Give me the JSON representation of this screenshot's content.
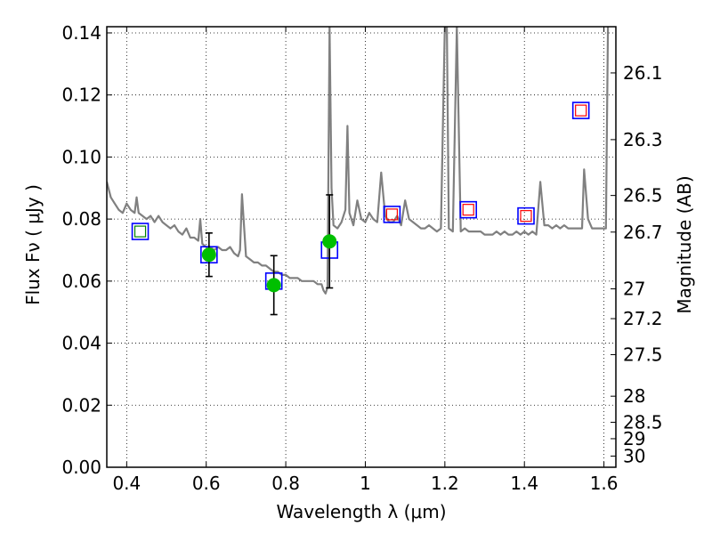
{
  "chart_data": {
    "type": "scatter",
    "xlabel": "Wavelength  λ (μm)",
    "ylabel": "Flux  Fν  ( μJy )",
    "y2label": "Magnitude (AB)",
    "xlim": [
      0.35,
      1.63
    ],
    "ylim": [
      0.0,
      0.142
    ],
    "x_ticks": [
      0.4,
      0.6,
      0.8,
      1.0,
      1.2,
      1.4,
      1.6
    ],
    "x_tick_labels": [
      "0.4",
      "0.6",
      "0.8",
      "1",
      "1.2",
      "1.4",
      "1.6"
    ],
    "y_ticks": [
      0.0,
      0.02,
      0.04,
      0.06,
      0.08,
      0.1,
      0.12,
      0.14
    ],
    "y_tick_labels": [
      "0.00",
      "0.02",
      "0.04",
      "0.06",
      "0.08",
      "0.10",
      "0.12",
      "0.14"
    ],
    "mag_ticks": [
      {
        "flux": 0.1271,
        "label": "26.1"
      },
      {
        "flux": 0.1056,
        "label": "26.3"
      },
      {
        "flux": 0.0876,
        "label": "26.5"
      },
      {
        "flux": 0.0758,
        "label": "26.7"
      },
      {
        "flux": 0.0575,
        "label": "27"
      },
      {
        "flux": 0.0479,
        "label": "27.2"
      },
      {
        "flux": 0.0363,
        "label": "27.5"
      },
      {
        "flux": 0.0229,
        "label": "28"
      },
      {
        "flux": 0.0145,
        "label": "28.5"
      },
      {
        "flux": 0.0092,
        "label": "29"
      },
      {
        "flux": 0.0036,
        "label": "30"
      }
    ],
    "grid": true,
    "colors": {
      "spectrum": "#808080",
      "model_box": "#0000ff",
      "inner_green": "#008000",
      "inner_red": "#ff0000",
      "observed": "#00bf00",
      "errorbar": "#000000"
    },
    "series": [
      {
        "marker": "spectrum",
        "x": [
          0.35,
          0.36,
          0.37,
          0.38,
          0.39,
          0.4,
          0.41,
          0.42,
          0.425,
          0.43,
          0.44,
          0.45,
          0.46,
          0.47,
          0.48,
          0.49,
          0.5,
          0.51,
          0.52,
          0.53,
          0.54,
          0.55,
          0.56,
          0.57,
          0.58,
          0.585,
          0.59,
          0.6,
          0.61,
          0.62,
          0.63,
          0.64,
          0.65,
          0.66,
          0.67,
          0.68,
          0.685,
          0.69,
          0.7,
          0.71,
          0.72,
          0.73,
          0.74,
          0.75,
          0.76,
          0.77,
          0.78,
          0.79,
          0.8,
          0.81,
          0.82,
          0.83,
          0.84,
          0.85,
          0.86,
          0.87,
          0.88,
          0.885,
          0.89,
          0.895,
          0.9,
          0.905,
          0.91,
          0.915,
          0.92,
          0.93,
          0.94,
          0.95,
          0.955,
          0.96,
          0.97,
          0.98,
          0.99,
          1.0,
          1.01,
          1.02,
          1.03,
          1.04,
          1.05,
          1.06,
          1.07,
          1.08,
          1.09,
          1.1,
          1.11,
          1.12,
          1.13,
          1.14,
          1.15,
          1.16,
          1.17,
          1.18,
          1.19,
          1.2,
          1.205,
          1.21,
          1.22,
          1.23,
          1.24,
          1.25,
          1.26,
          1.27,
          1.28,
          1.29,
          1.3,
          1.31,
          1.32,
          1.33,
          1.34,
          1.35,
          1.36,
          1.37,
          1.38,
          1.39,
          1.4,
          1.41,
          1.42,
          1.43,
          1.44,
          1.45,
          1.46,
          1.47,
          1.48,
          1.49,
          1.5,
          1.51,
          1.52,
          1.53,
          1.54,
          1.545,
          1.55,
          1.56,
          1.57,
          1.58,
          1.59,
          1.6,
          1.605,
          1.61
        ],
        "y": [
          0.092,
          0.087,
          0.085,
          0.083,
          0.082,
          0.085,
          0.083,
          0.082,
          0.087,
          0.082,
          0.081,
          0.08,
          0.081,
          0.079,
          0.081,
          0.079,
          0.078,
          0.077,
          0.078,
          0.076,
          0.075,
          0.077,
          0.074,
          0.074,
          0.073,
          0.08,
          0.072,
          0.071,
          0.071,
          0.07,
          0.071,
          0.07,
          0.07,
          0.071,
          0.069,
          0.068,
          0.07,
          0.088,
          0.068,
          0.067,
          0.066,
          0.066,
          0.065,
          0.065,
          0.064,
          0.063,
          0.063,
          0.062,
          0.062,
          0.061,
          0.061,
          0.061,
          0.06,
          0.06,
          0.06,
          0.06,
          0.059,
          0.059,
          0.059,
          0.057,
          0.056,
          0.058,
          0.142,
          0.09,
          0.078,
          0.077,
          0.079,
          0.083,
          0.11,
          0.082,
          0.078,
          0.086,
          0.08,
          0.079,
          0.082,
          0.08,
          0.079,
          0.095,
          0.081,
          0.079,
          0.079,
          0.081,
          0.078,
          0.086,
          0.08,
          0.079,
          0.078,
          0.077,
          0.077,
          0.078,
          0.077,
          0.076,
          0.077,
          0.142,
          0.142,
          0.077,
          0.076,
          0.142,
          0.076,
          0.077,
          0.076,
          0.076,
          0.076,
          0.076,
          0.075,
          0.075,
          0.075,
          0.076,
          0.075,
          0.076,
          0.075,
          0.075,
          0.076,
          0.075,
          0.076,
          0.075,
          0.076,
          0.075,
          0.092,
          0.078,
          0.078,
          0.077,
          0.078,
          0.077,
          0.078,
          0.077,
          0.077,
          0.077,
          0.077,
          0.077,
          0.096,
          0.08,
          0.077,
          0.077,
          0.077,
          0.077,
          0.077,
          0.142
        ]
      },
      {
        "marker": "open-square-blue-inner-green",
        "x": [
          0.434
        ],
        "y": [
          0.076
        ]
      },
      {
        "marker": "open-square-blue",
        "x": [
          0.607,
          0.77,
          0.91
        ],
        "y": [
          0.0685,
          0.06,
          0.07
        ]
      },
      {
        "marker": "open-square-blue-inner-red",
        "x": [
          1.067,
          1.259,
          1.404,
          1.542
        ],
        "y": [
          0.0815,
          0.083,
          0.081,
          0.115
        ]
      },
      {
        "marker": "filled-circle-errorbar",
        "x": [
          0.607,
          0.77,
          0.91
        ],
        "y": [
          0.0685,
          0.0587,
          0.0728
        ],
        "yerr": [
          0.007,
          0.0095,
          0.015
        ]
      }
    ]
  }
}
